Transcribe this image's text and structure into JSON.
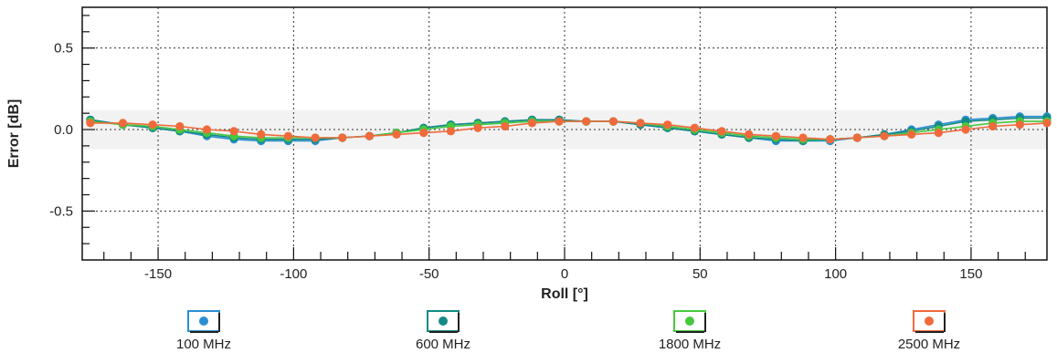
{
  "chart_data": {
    "type": "line",
    "xlabel": "Roll [°]",
    "ylabel": "Error [dB]",
    "xlim": [
      -178,
      178
    ],
    "ylim": [
      -0.8,
      0.75
    ],
    "xticks": [
      -150,
      -100,
      -50,
      0,
      50,
      100,
      150
    ],
    "xtick_labels": [
      "-150",
      "-100",
      "-50",
      "0",
      "50",
      "100",
      "150"
    ],
    "yticks": [
      -0.5,
      0.0,
      0.5
    ],
    "ytick_labels": [
      "-0.5",
      "0.0",
      "0.5"
    ],
    "grid": true,
    "legend_position": "bottom",
    "x": [
      -175,
      -163,
      -152,
      -142,
      -132,
      -122,
      -112,
      -102,
      -92,
      -82,
      -72,
      -62,
      -52,
      -42,
      -32,
      -22,
      -12,
      -2,
      8,
      18,
      28,
      38,
      48,
      58,
      68,
      78,
      88,
      98,
      108,
      118,
      128,
      138,
      148,
      158,
      168,
      178
    ],
    "series": [
      {
        "name": "100 MHz",
        "color": "#2a8fd1",
        "values": [
          0.06,
          0.03,
          0.01,
          -0.01,
          -0.04,
          -0.06,
          -0.07,
          -0.07,
          -0.07,
          -0.05,
          -0.04,
          -0.02,
          0.01,
          0.03,
          0.04,
          0.05,
          0.06,
          0.06,
          0.05,
          0.05,
          0.03,
          0.01,
          -0.01,
          -0.03,
          -0.05,
          -0.07,
          -0.07,
          -0.07,
          -0.05,
          -0.03,
          0.0,
          0.03,
          0.06,
          0.07,
          0.08,
          0.08
        ]
      },
      {
        "name": "600 MHz",
        "color": "#138a84",
        "values": [
          0.06,
          0.03,
          0.01,
          -0.01,
          -0.03,
          -0.05,
          -0.06,
          -0.06,
          -0.06,
          -0.05,
          -0.04,
          -0.02,
          0.01,
          0.03,
          0.04,
          0.05,
          0.06,
          0.06,
          0.05,
          0.05,
          0.03,
          0.01,
          -0.01,
          -0.03,
          -0.05,
          -0.06,
          -0.07,
          -0.06,
          -0.05,
          -0.03,
          -0.01,
          0.02,
          0.05,
          0.06,
          0.07,
          0.07
        ]
      },
      {
        "name": "1800 MHz",
        "color": "#46c83c",
        "values": [
          0.05,
          0.03,
          0.02,
          0.0,
          -0.02,
          -0.04,
          -0.05,
          -0.05,
          -0.05,
          -0.05,
          -0.04,
          -0.02,
          0.0,
          0.02,
          0.03,
          0.04,
          0.05,
          0.05,
          0.05,
          0.05,
          0.04,
          0.02,
          0.0,
          -0.02,
          -0.04,
          -0.05,
          -0.06,
          -0.06,
          -0.05,
          -0.04,
          -0.02,
          0.0,
          0.02,
          0.04,
          0.05,
          0.05
        ]
      },
      {
        "name": "2500 MHz",
        "color": "#f06a3c",
        "values": [
          0.04,
          0.04,
          0.03,
          0.02,
          0.0,
          -0.01,
          -0.03,
          -0.04,
          -0.05,
          -0.05,
          -0.04,
          -0.03,
          -0.02,
          -0.01,
          0.01,
          0.02,
          0.04,
          0.05,
          0.05,
          0.05,
          0.04,
          0.03,
          0.01,
          -0.01,
          -0.03,
          -0.04,
          -0.05,
          -0.06,
          -0.05,
          -0.04,
          -0.03,
          -0.02,
          0.0,
          0.02,
          0.03,
          0.04
        ]
      }
    ]
  }
}
